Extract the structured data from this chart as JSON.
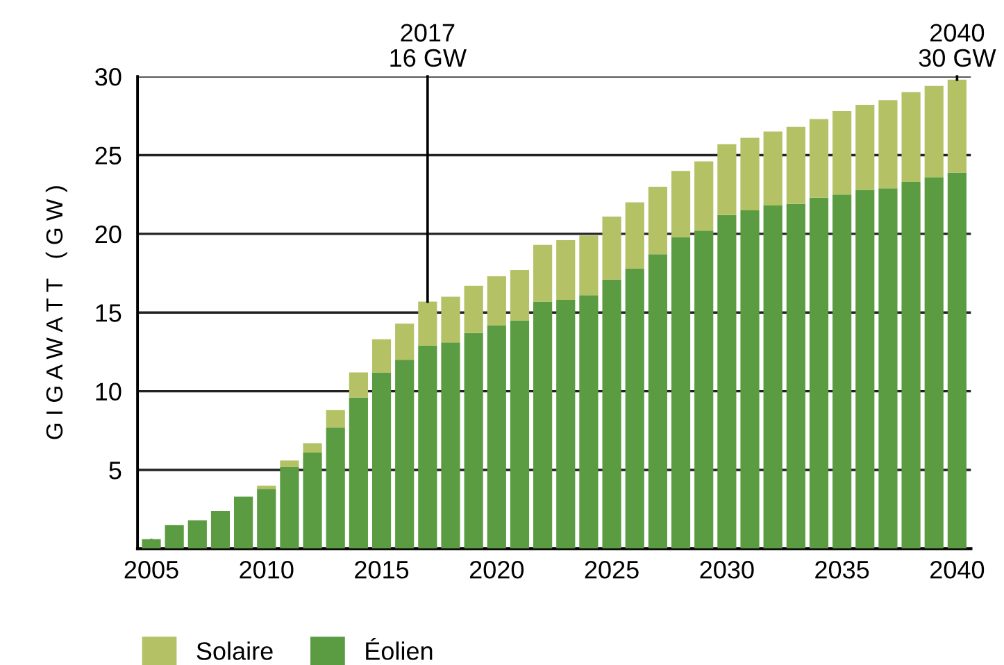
{
  "chart_data": {
    "type": "bar",
    "stacked": true,
    "x": [
      2005,
      2006,
      2007,
      2008,
      2009,
      2010,
      2011,
      2012,
      2013,
      2014,
      2015,
      2016,
      2017,
      2018,
      2019,
      2020,
      2021,
      2022,
      2023,
      2024,
      2025,
      2026,
      2027,
      2028,
      2029,
      2030,
      2031,
      2032,
      2033,
      2034,
      2035,
      2036,
      2037,
      2038,
      2039,
      2040
    ],
    "series": [
      {
        "name": "Éolien",
        "color": "#5b9b42",
        "values": [
          0.6,
          1.5,
          1.8,
          2.4,
          3.3,
          3.8,
          5.2,
          6.1,
          7.7,
          9.6,
          11.2,
          12.0,
          12.9,
          13.1,
          13.7,
          14.2,
          14.5,
          15.7,
          15.8,
          16.1,
          17.1,
          17.8,
          18.7,
          19.8,
          20.2,
          21.2,
          21.5,
          21.8,
          21.9,
          22.3,
          22.5,
          22.8,
          22.9,
          23.3,
          23.6,
          23.9
        ]
      },
      {
        "name": "Solaire",
        "color": "#b4c165",
        "values": [
          0,
          0,
          0,
          0,
          0,
          0.2,
          0.4,
          0.6,
          1.1,
          1.6,
          2.1,
          2.3,
          2.8,
          2.9,
          3.0,
          3.1,
          3.2,
          3.6,
          3.8,
          3.8,
          4.0,
          4.2,
          4.3,
          4.2,
          4.4,
          4.5,
          4.6,
          4.7,
          4.9,
          5.0,
          5.3,
          5.4,
          5.6,
          5.7,
          5.8,
          5.9
        ]
      }
    ],
    "ylabel": "G I G A W A T T   ( G W )",
    "ylim": [
      0,
      30
    ],
    "yticks": [
      5,
      10,
      15,
      20,
      25,
      30
    ],
    "xlim": [
      2004.4,
      2040.6
    ],
    "xticks": [
      2005,
      {
        "value": 2006,
        "label": null
      },
      {
        "value": 2007,
        "label": null
      },
      {
        "value": 2008,
        "label": null
      },
      {
        "value": 2009,
        "label": null
      },
      2010,
      {
        "value": 2011,
        "label": null
      },
      {
        "value": 2012,
        "label": null
      },
      {
        "value": 2013,
        "label": null
      },
      {
        "value": 2014,
        "label": null
      },
      2015,
      {
        "value": 2016,
        "label": null
      },
      {
        "value": 2017,
        "label": null
      },
      {
        "value": 2018,
        "label": null
      },
      {
        "value": 2019,
        "label": null
      },
      2020,
      {
        "value": 2021,
        "label": null
      },
      {
        "value": 2022,
        "label": null
      },
      {
        "value": 2023,
        "label": null
      },
      {
        "value": 2024,
        "label": null
      },
      2025,
      {
        "value": 2026,
        "label": null
      },
      {
        "value": 2027,
        "label": null
      },
      {
        "value": 2028,
        "label": null
      },
      {
        "value": 2029,
        "label": null
      },
      2030,
      {
        "value": 2031,
        "label": null
      },
      {
        "value": 2032,
        "label": null
      },
      {
        "value": 2033,
        "label": null
      },
      {
        "value": 2034,
        "label": null
      },
      2035,
      {
        "value": 2036,
        "label": null
      },
      {
        "value": 2037,
        "label": null
      },
      {
        "value": 2038,
        "label": null
      },
      {
        "value": 2039,
        "label": null
      },
      2040
    ],
    "grid": "y",
    "legend": "bottom",
    "annotations": [
      {
        "text": "2017\n16 GW",
        "x": 2017,
        "y": 15.7
      },
      {
        "text": "2040\n30 GW",
        "x": 2040,
        "y": 29.8
      }
    ]
  }
}
